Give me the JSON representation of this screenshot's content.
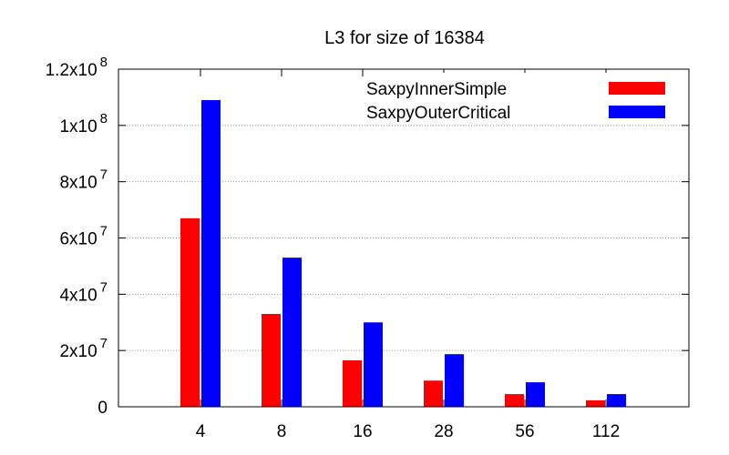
{
  "chart_data": {
    "type": "bar",
    "title": "L3 for size of 16384",
    "xlabel": "",
    "ylabel": "",
    "categories": [
      "4",
      "8",
      "16",
      "28",
      "56",
      "112"
    ],
    "series": [
      {
        "name": "SaxpyInnerSimple",
        "color": "#ff0000",
        "values": [
          67000000,
          33000000,
          16500000,
          9300000,
          4500000,
          2300000
        ]
      },
      {
        "name": "SaxpyOuterCritical",
        "color": "#0000ff",
        "values": [
          109000000,
          53000000,
          30000000,
          18700000,
          8700000,
          4500000
        ]
      }
    ],
    "ylim": [
      0,
      120000000
    ],
    "yticks": [
      {
        "value": 0,
        "base": "0",
        "exp": ""
      },
      {
        "value": 20000000,
        "base": "2x10",
        "exp": "7"
      },
      {
        "value": 40000000,
        "base": "4x10",
        "exp": "7"
      },
      {
        "value": 60000000,
        "base": "6x10",
        "exp": "7"
      },
      {
        "value": 80000000,
        "base": "8x10",
        "exp": "7"
      },
      {
        "value": 100000000,
        "base": "1x10",
        "exp": "8"
      },
      {
        "value": 120000000,
        "base": "1.2x10",
        "exp": "8"
      }
    ],
    "grid": true,
    "legend_position": "top-right"
  }
}
